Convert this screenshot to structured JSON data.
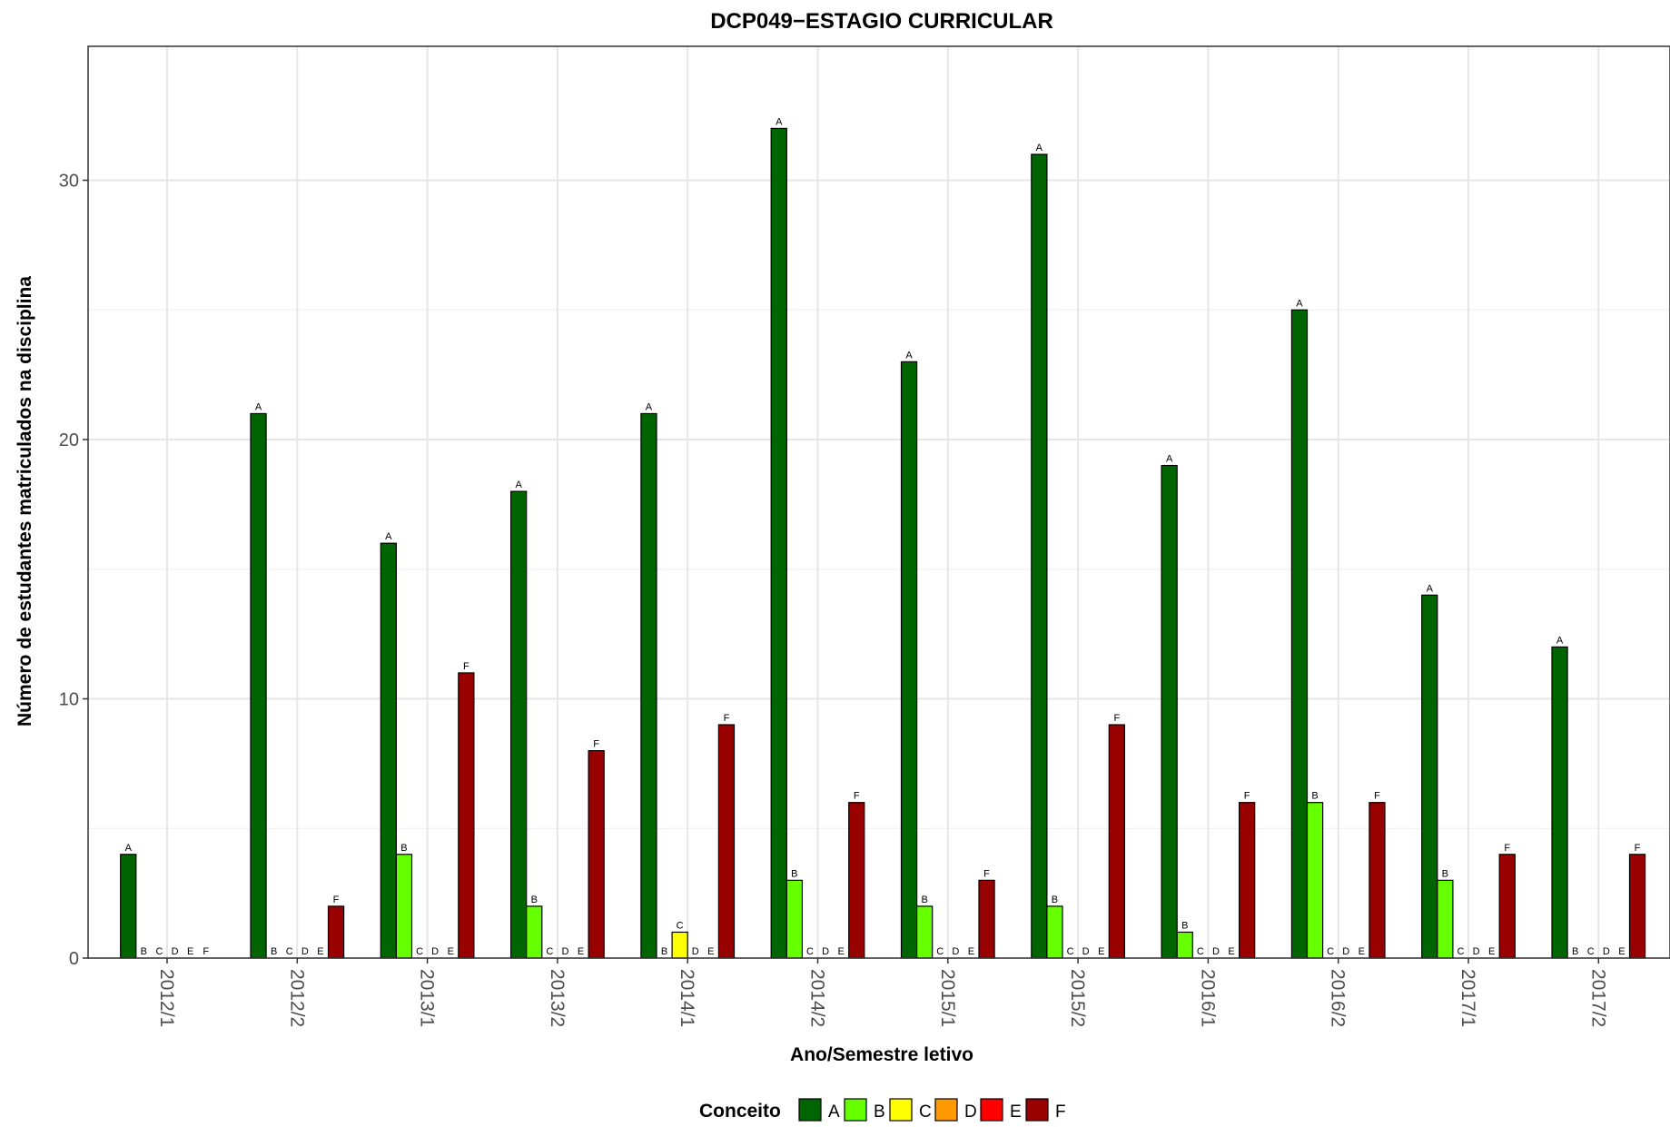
{
  "chart_data": {
    "type": "bar",
    "title": "DCP049−ESTAGIO CURRICULAR",
    "xlabel": "Ano/Semestre letivo",
    "ylabel": "Número de estudantes matriculados na disciplina",
    "ylim": [
      0,
      35
    ],
    "yticks": [
      0,
      10,
      20,
      30
    ],
    "grid": true,
    "legend_position": "bottom",
    "legend_title": "Conceito",
    "categories": [
      "2012/1",
      "2012/2",
      "2013/1",
      "2013/2",
      "2014/1",
      "2014/2",
      "2015/1",
      "2015/2",
      "2016/1",
      "2016/2",
      "2017/1",
      "2017/2"
    ],
    "series": [
      {
        "name": "A",
        "color": "#006400",
        "values": [
          4,
          21,
          16,
          18,
          21,
          32,
          23,
          31,
          19,
          25,
          14,
          12
        ]
      },
      {
        "name": "B",
        "color": "#66FF00",
        "values": [
          0,
          0,
          4,
          2,
          0,
          3,
          2,
          2,
          1,
          6,
          3,
          0
        ]
      },
      {
        "name": "C",
        "color": "#FFFF00",
        "values": [
          0,
          0,
          0,
          0,
          1,
          0,
          0,
          0,
          0,
          0,
          0,
          0
        ]
      },
      {
        "name": "D",
        "color": "#FF9900",
        "values": [
          0,
          0,
          0,
          0,
          0,
          0,
          0,
          0,
          0,
          0,
          0,
          0
        ]
      },
      {
        "name": "E",
        "color": "#FF0000",
        "values": [
          0,
          0,
          0,
          0,
          0,
          0,
          0,
          0,
          0,
          0,
          0,
          0
        ]
      },
      {
        "name": "F",
        "color": "#990000",
        "values": [
          0,
          2,
          11,
          8,
          9,
          6,
          3,
          9,
          6,
          6,
          4,
          4
        ]
      }
    ]
  }
}
